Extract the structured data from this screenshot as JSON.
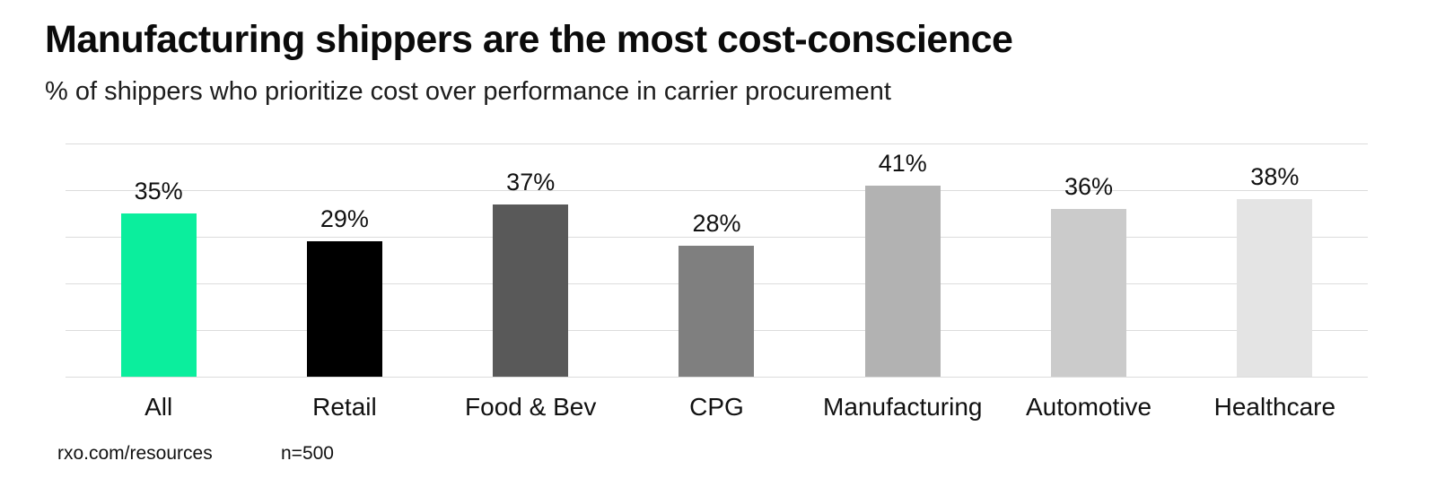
{
  "header": {
    "title": "Manufacturing shippers are the most cost-conscience",
    "subtitle": "% of shippers who prioritize cost over performance in carrier procurement"
  },
  "chart_data": {
    "type": "bar",
    "title": "Manufacturing shippers are the most cost-conscience",
    "subtitle": "% of shippers who prioritize cost over performance in carrier procurement",
    "categories": [
      "All",
      "Retail",
      "Food & Bev",
      "CPG",
      "Manufacturing",
      "Automotive",
      "Healthcare"
    ],
    "values": [
      35,
      29,
      37,
      28,
      41,
      36,
      38
    ],
    "value_labels": [
      "35%",
      "29%",
      "37%",
      "28%",
      "41%",
      "36%",
      "38%"
    ],
    "bar_colors": [
      "#0BEE9D",
      "#000000",
      "#595959",
      "#7F7F7F",
      "#B2B2B2",
      "#CBCBCB",
      "#E4E4E4"
    ],
    "xlabel": "",
    "ylabel": "",
    "ylim": [
      0,
      50
    ],
    "grid": "horizontal gridlines every 10%, no y tick labels",
    "legend": "none"
  },
  "footer": {
    "source": "rxo.com/resources",
    "sample_size": "n=500"
  },
  "colors": {
    "accent_green": "#0BEE9D",
    "gridline": "#DCDCDC",
    "background": "#FFFFFF",
    "text": "#111111"
  }
}
